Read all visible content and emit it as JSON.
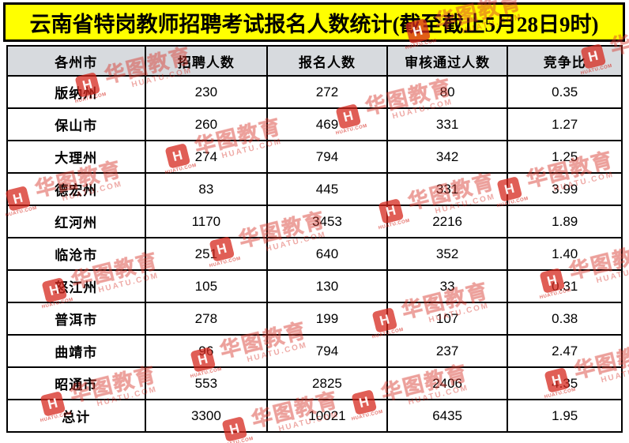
{
  "title": "云南省特岗教师招聘考试报名人数统计(截至截止5月28日9时)",
  "table": {
    "columns": [
      "各州市",
      "招聘人数",
      "报名人数",
      "审核通过人数",
      "竞争比"
    ],
    "rows": [
      [
        "版纳州",
        "230",
        "272",
        "80",
        "0.35"
      ],
      [
        "保山市",
        "260",
        "469",
        "331",
        "1.27"
      ],
      [
        "大理州",
        "274",
        "794",
        "342",
        "1.25"
      ],
      [
        "德宏州",
        "83",
        "445",
        "331",
        "3.99"
      ],
      [
        "红河州",
        "1170",
        "3453",
        "2216",
        "1.89"
      ],
      [
        "临沧市",
        "251",
        "640",
        "352",
        "1.40"
      ],
      [
        "怒江州",
        "105",
        "130",
        "33",
        "0.31"
      ],
      [
        "普洱市",
        "278",
        "199",
        "107",
        "0.38"
      ],
      [
        "曲靖市",
        "96",
        "794",
        "237",
        "2.47"
      ],
      [
        "昭通市",
        "553",
        "2825",
        "2406",
        "4.35"
      ],
      [
        "总计",
        "3300",
        "10021",
        "6435",
        "1.95"
      ]
    ]
  },
  "watermark": {
    "logo_glyph": "H",
    "logo_sub": "HUATU.COM",
    "cn": "华图教育",
    "en": "HUATU.COM"
  },
  "colors": {
    "title_bg": "#ffff00",
    "title_text": "#000000",
    "header_bg": "#d7dade",
    "table_border": "#000000",
    "watermark_red": "#d5281e"
  },
  "chart_data": {
    "type": "table",
    "title": "云南省特岗教师招聘考试报名人数统计(截至截止5月28日9时)",
    "columns": [
      "各州市",
      "招聘人数",
      "报名人数",
      "审核通过人数",
      "竞争比"
    ],
    "rows": [
      [
        "版纳州",
        230,
        272,
        80,
        0.35
      ],
      [
        "保山市",
        260,
        469,
        331,
        1.27
      ],
      [
        "大理州",
        274,
        794,
        342,
        1.25
      ],
      [
        "德宏州",
        83,
        445,
        331,
        3.99
      ],
      [
        "红河州",
        1170,
        3453,
        2216,
        1.89
      ],
      [
        "临沧市",
        251,
        640,
        352,
        1.4
      ],
      [
        "怒江州",
        105,
        130,
        33,
        0.31
      ],
      [
        "普洱市",
        278,
        199,
        107,
        0.38
      ],
      [
        "曲靖市",
        96,
        794,
        237,
        2.47
      ],
      [
        "昭通市",
        553,
        2825,
        2406,
        4.35
      ],
      [
        "总计",
        3300,
        10021,
        6435,
        1.95
      ]
    ]
  }
}
